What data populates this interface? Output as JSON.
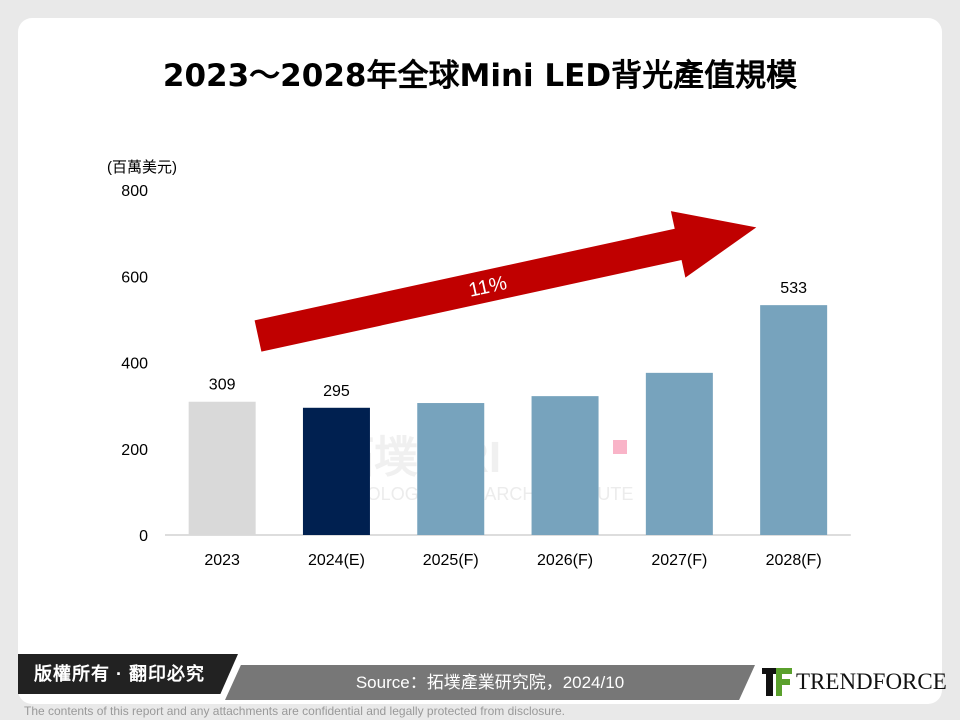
{
  "chart_data": {
    "type": "bar",
    "title": "2023～2028年全球Mini LED背光產值規模",
    "ylabel": "(百萬美元)",
    "ylim": [
      0,
      800
    ],
    "yticks": [
      0,
      200,
      400,
      600,
      800
    ],
    "categories": [
      "2023",
      "2024(E)",
      "2025(F)",
      "2026(F)",
      "2027(F)",
      "2028(F)"
    ],
    "values": [
      309,
      295,
      306,
      322,
      376,
      533
    ],
    "data_labels": [
      "309",
      "295",
      "",
      "",
      "",
      "533"
    ],
    "colors": [
      "#d9d9d9",
      "#002050",
      "#77a3bd",
      "#77a3bd",
      "#77a3bd",
      "#77a3bd"
    ],
    "annotation": "11%",
    "annotation_color": "#c00000",
    "grid": false
  },
  "watermark": {
    "text": "拓墣 TRI",
    "subtitle": "TOPOLOGY RESEARCH INSTITUTE"
  },
  "footer": {
    "copyright": "版權所有 · 翻印必究",
    "source": "Source：拓墣產業研究院，2024/10",
    "logo": "TRENDFORCE",
    "disclaimer": "The contents of this report and any attachments are confidential and legally protected from disclosure."
  }
}
